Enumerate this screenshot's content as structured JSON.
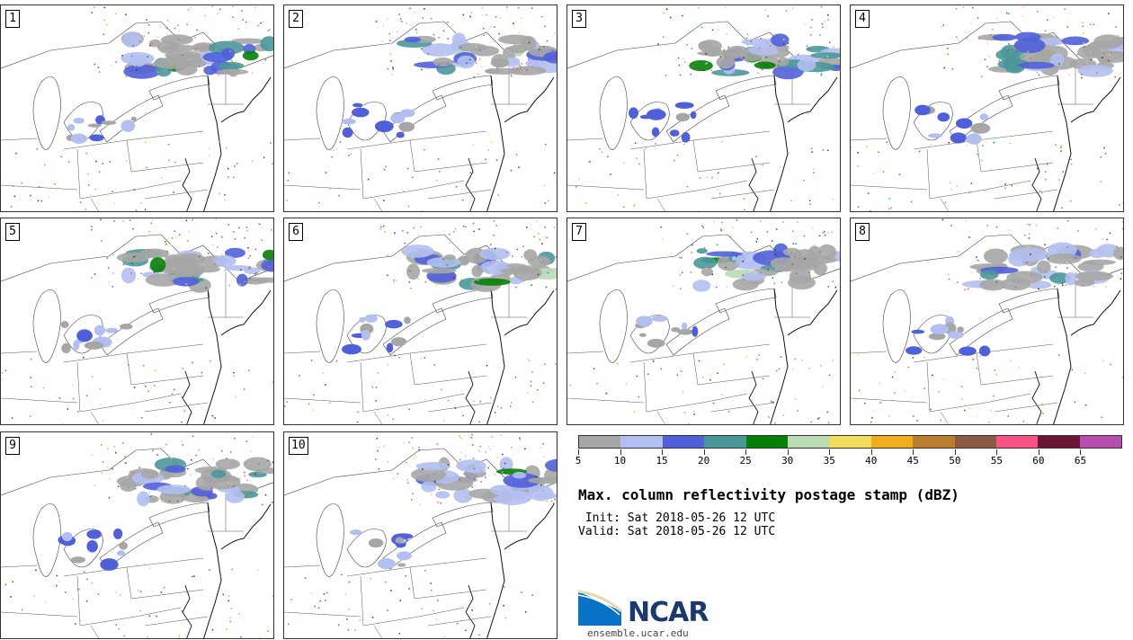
{
  "panels": [
    {
      "label": "1",
      "seed": 11
    },
    {
      "label": "2",
      "seed": 23
    },
    {
      "label": "3",
      "seed": 37
    },
    {
      "label": "4",
      "seed": 41
    },
    {
      "label": "5",
      "seed": 53
    },
    {
      "label": "6",
      "seed": 67
    },
    {
      "label": "7",
      "seed": 71
    },
    {
      "label": "8",
      "seed": 83
    },
    {
      "label": "9",
      "seed": 97
    },
    {
      "label": "10",
      "seed": 109
    }
  ],
  "colorbar": {
    "colors": [
      "#a6a6a6",
      "#b3bff0",
      "#5060d8",
      "#4a979a",
      "#058005",
      "#b9dcb5",
      "#f2dc5c",
      "#f0ae1c",
      "#b97f2e",
      "#8a5a42",
      "#f75485",
      "#6b1638",
      "#b54eae"
    ],
    "ticks": [
      "5",
      "10",
      "15",
      "20",
      "25",
      "30",
      "35",
      "40",
      "45",
      "50",
      "55",
      "60",
      "65"
    ]
  },
  "title": "Max. column reflectivity postage stamp (dBZ)",
  "init": " Init: Sat 2018-05-26 12 UTC",
  "valid": "Valid: Sat 2018-05-26 12 UTC",
  "logo": {
    "text": "NCAR",
    "url": "ensemble.ucar.edu"
  }
}
